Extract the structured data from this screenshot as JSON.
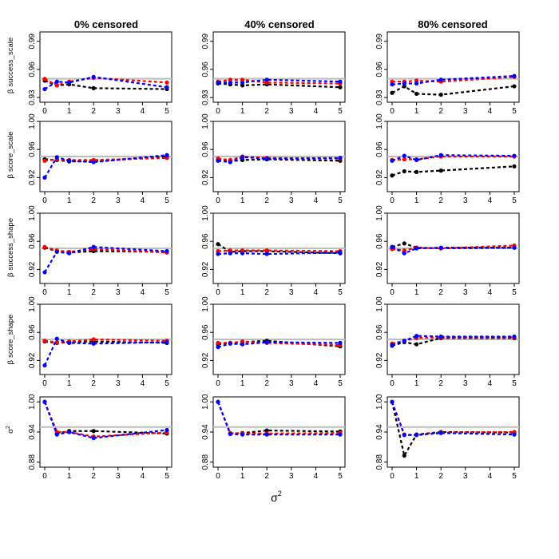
{
  "chart_data": {
    "type": "line",
    "x_axis_label": "σ",
    "x_axis_label_sup": "2",
    "x": [
      0,
      0.5,
      1,
      2,
      5
    ],
    "x_ticks": [
      "0",
      "1",
      "2",
      "3",
      "4",
      "5"
    ],
    "reference_line": {
      "value": 0.95,
      "color": "#bebebe"
    },
    "series_colors": {
      "black": "#000000",
      "red": "#ff0000",
      "blue": "#0000ff"
    },
    "columns": [
      "0% censored",
      "40% censored",
      "80% censored"
    ],
    "rows": [
      {
        "ylabel_prefix": "β",
        "ylabel": "success_scale",
        "ylim": [
          0.925,
          1.0
        ],
        "yticks": [
          "0.93",
          "0.96",
          "0.99"
        ],
        "ytick_values": [
          0.93,
          0.96,
          0.99
        ]
      },
      {
        "ylabel_prefix": "β",
        "ylabel": "score_scale",
        "ylim": [
          0.9,
          1.0
        ],
        "yticks": [
          "0.92",
          "0.96",
          "1.00"
        ],
        "ytick_values": [
          0.92,
          0.96,
          1.0
        ]
      },
      {
        "ylabel_prefix": "β",
        "ylabel": "success_shape",
        "ylim": [
          0.9,
          1.0
        ],
        "yticks": [
          "0.92",
          "0.96",
          "1.00"
        ],
        "ytick_values": [
          0.92,
          0.96,
          1.0
        ]
      },
      {
        "ylabel_prefix": "β",
        "ylabel": "score_shape",
        "ylim": [
          0.9,
          1.0
        ],
        "yticks": [
          "0.92",
          "0.96",
          "1.00"
        ],
        "ytick_values": [
          0.92,
          0.96,
          1.0
        ]
      },
      {
        "ylabel_prefix": "σ",
        "ylabel": "2",
        "ylim": [
          0.87,
          1.01
        ],
        "yticks": [
          "0.88",
          "0.94",
          "1.00"
        ],
        "ytick_values": [
          0.88,
          0.94,
          1.0
        ]
      }
    ],
    "panels": [
      [
        {
          "black": [
            0.948,
            0.943,
            0.944,
            0.94,
            0.939
          ],
          "red": [
            0.95,
            0.943,
            0.947,
            0.951,
            0.946
          ],
          "blue": [
            0.939,
            0.947,
            0.946,
            0.952,
            0.941
          ]
        },
        {
          "black": [
            0.946,
            0.945,
            0.943,
            0.943,
            0.95
          ],
          "red": [
            0.944,
            0.946,
            0.945,
            0.945,
            0.948
          ],
          "blue": [
            0.92,
            0.949,
            0.944,
            0.942,
            0.952
          ]
        },
        {
          "black": [
            0.951,
            0.946,
            0.944,
            0.946,
            0.945
          ],
          "red": [
            0.952,
            0.947,
            0.945,
            0.949,
            0.944
          ],
          "blue": [
            0.916,
            0.945,
            0.943,
            0.952,
            0.946
          ]
        },
        {
          "black": [
            0.947,
            0.945,
            0.946,
            0.947,
            0.945
          ],
          "red": [
            0.948,
            0.946,
            0.947,
            0.95,
            0.948
          ],
          "blue": [
            0.913,
            0.951,
            0.945,
            0.944,
            0.946
          ]
        },
        {
          "black": [
            1.0,
            0.937,
            0.942,
            0.942,
            0.937
          ],
          "red": [
            1.0,
            0.94,
            0.94,
            0.931,
            0.939
          ],
          "blue": [
            1.0,
            0.935,
            0.94,
            0.928,
            0.944
          ]
        }
      ],
      [
        {
          "black": [
            0.945,
            0.944,
            0.943,
            0.944,
            0.941
          ],
          "red": [
            0.947,
            0.949,
            0.949,
            0.946,
            0.945
          ],
          "blue": [
            0.946,
            0.946,
            0.946,
            0.949,
            0.947
          ]
        },
        {
          "black": [
            0.945,
            0.943,
            0.945,
            0.946,
            0.944
          ],
          "red": [
            0.947,
            0.945,
            0.95,
            0.948,
            0.947
          ],
          "blue": [
            0.944,
            0.942,
            0.949,
            0.947,
            0.948
          ]
        },
        {
          "black": [
            0.956,
            0.945,
            0.946,
            0.946,
            0.943
          ],
          "red": [
            0.946,
            0.947,
            0.947,
            0.947,
            0.946
          ],
          "blue": [
            0.942,
            0.943,
            0.943,
            0.942,
            0.944
          ]
        },
        {
          "black": [
            0.943,
            0.945,
            0.946,
            0.948,
            0.94
          ],
          "red": [
            0.945,
            0.945,
            0.947,
            0.945,
            0.942
          ],
          "blue": [
            0.939,
            0.944,
            0.943,
            0.946,
            0.945
          ]
        },
        {
          "black": [
            1.0,
            0.937,
            0.938,
            0.943,
            0.941
          ],
          "red": [
            1.0,
            0.938,
            0.937,
            0.937,
            0.938
          ],
          "blue": [
            1.0,
            0.936,
            0.935,
            0.935,
            0.935
          ]
        }
      ],
      [
        {
          "black": [
            0.935,
            0.942,
            0.934,
            0.933,
            0.942
          ],
          "red": [
            0.947,
            0.947,
            0.948,
            0.947,
            0.952
          ],
          "blue": [
            0.944,
            0.945,
            0.945,
            0.949,
            0.953
          ]
        },
        {
          "black": [
            0.923,
            0.929,
            0.928,
            0.93,
            0.936
          ],
          "red": [
            0.945,
            0.946,
            0.946,
            0.95,
            0.95
          ],
          "blue": [
            0.944,
            0.951,
            0.945,
            0.952,
            0.951
          ]
        },
        {
          "black": [
            0.952,
            0.957,
            0.951,
            0.95,
            0.951
          ],
          "red": [
            0.949,
            0.947,
            0.951,
            0.95,
            0.954
          ],
          "blue": [
            0.952,
            0.943,
            0.95,
            0.951,
            0.951
          ]
        },
        {
          "black": [
            0.941,
            0.946,
            0.943,
            0.952,
            0.952
          ],
          "red": [
            0.944,
            0.948,
            0.952,
            0.953,
            0.953
          ],
          "blue": [
            0.942,
            0.948,
            0.955,
            0.954,
            0.954
          ]
        },
        {
          "black": [
            1.0,
            0.893,
            0.935,
            0.94,
            0.939
          ],
          "red": [
            1.0,
            0.935,
            0.934,
            0.939,
            0.94
          ],
          "blue": [
            1.0,
            0.934,
            0.934,
            0.938,
            0.935
          ]
        }
      ]
    ]
  }
}
